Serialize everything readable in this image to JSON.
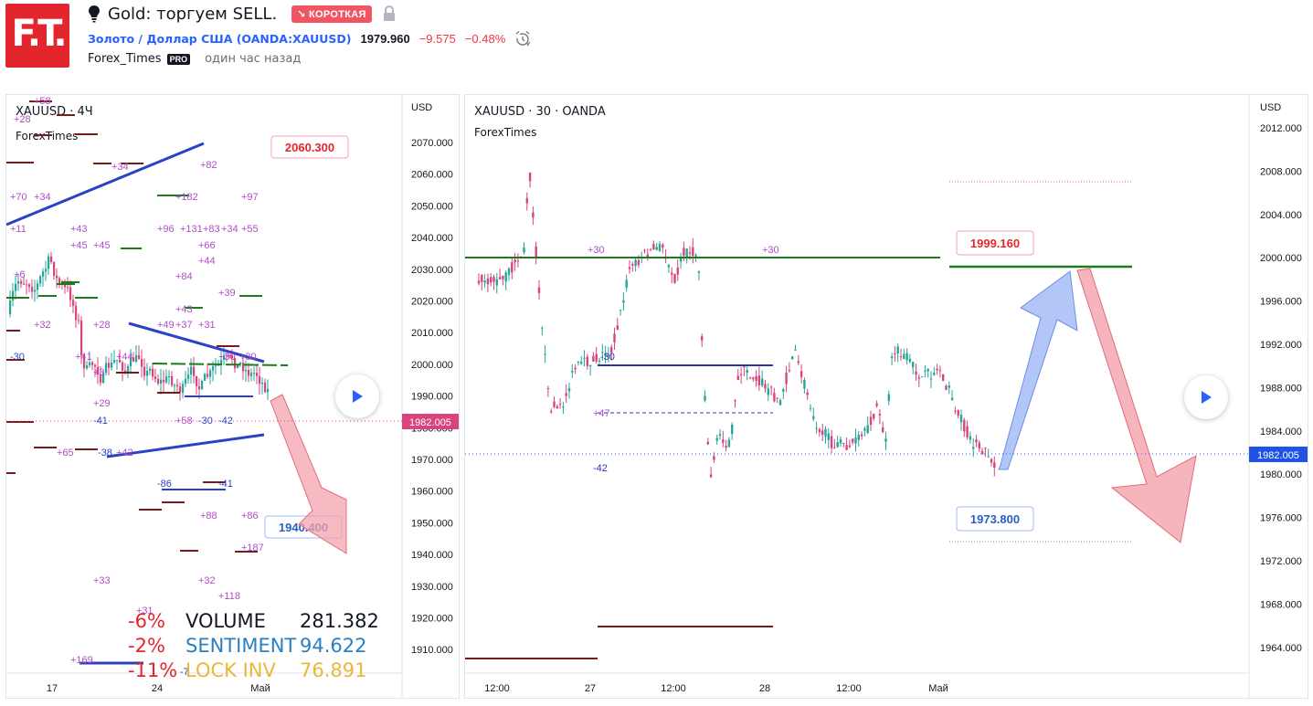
{
  "header": {
    "logo_text": "F.T.",
    "idea_title": "Gold: торгуем SELL.",
    "direction_badge": "↘ КОРОТКАЯ",
    "symbol_full": "Золото / Доллар США (OANDA:XAUUSD)",
    "price": "1979.960",
    "change": "−9.575",
    "change_pct": "−0.48%",
    "author": "Forex_Times",
    "author_badge": "PRO",
    "published": "один час назад",
    "icons": [
      "lightbulb-icon",
      "lock-icon",
      "alarm-clock-icon"
    ]
  },
  "left_chart": {
    "title": "XAUUSD · 4Ч",
    "watermark": "ForexTimes",
    "currency": "USD",
    "y_ticks": [
      "2070.000",
      "2060.000",
      "2050.000",
      "2040.000",
      "2030.000",
      "2020.000",
      "2010.000",
      "2000.000",
      "1990.000",
      "1980.000",
      "1970.000",
      "1960.000",
      "1950.000",
      "1940.000",
      "1930.000",
      "1920.000",
      "1910.000"
    ],
    "x_ticks": [
      "17",
      "24",
      "Май"
    ],
    "last_price": "1982.005",
    "target_high": "2060.300",
    "target_low": "1940.400",
    "volume_labels": [
      {
        "pct": "-6%",
        "name": "VOLUME",
        "value": "281.382",
        "color": "#131722"
      },
      {
        "pct": "-2%",
        "name": "SENTIMENT",
        "value": "94.622",
        "color": "#2a7fc1"
      },
      {
        "pct": "-11%",
        "name": "LOCK INV",
        "value": "76.891",
        "color": "#e8b83a"
      }
    ],
    "pct_color": "#e3262d",
    "annotations": [
      "+58",
      "+28",
      "+34",
      "+70",
      "+34",
      "+82",
      "+182",
      "+97",
      "+11",
      "+43",
      "+45",
      "+45",
      "+96",
      "+131",
      "+83",
      "+34",
      "+55",
      "+66",
      "+6",
      "+44",
      "+84",
      "+39",
      "+43",
      "+32",
      "+28",
      "+49",
      "+37",
      "+31",
      "-30",
      "+44",
      "+41",
      "+30",
      "+30",
      "+3",
      "+29",
      "-41",
      "+58",
      "-30",
      "-42",
      "+65",
      "-38",
      "+42",
      "-86",
      "-41",
      "+88",
      "+86",
      "+187",
      "+33",
      "+32",
      "+118",
      "+31",
      "+169",
      "-7"
    ]
  },
  "right_chart": {
    "title": "XAUUSD · 30 · OANDA",
    "watermark": "ForexTimes",
    "currency": "USD",
    "y_ticks": [
      "2012.000",
      "2008.000",
      "2004.000",
      "2000.000",
      "1996.000",
      "1992.000",
      "1988.000",
      "1984.000",
      "1980.000",
      "1976.000",
      "1972.000",
      "1968.000",
      "1964.000"
    ],
    "x_ticks": [
      "12:00",
      "27",
      "12:00",
      "28",
      "12:00",
      "Май"
    ],
    "last_price": "1982.005",
    "target_high": "1999.160",
    "target_low": "1973.800",
    "annotations": [
      "+30",
      "+30",
      "+47",
      "-42",
      "-30"
    ]
  },
  "colors": {
    "up": "#26a69a",
    "candle": "#d9437e",
    "down_arrow": "#f4a3ad",
    "up_arrow": "#9fb9f5",
    "trend_blue": "#2a42c9",
    "green_line": "#1e7a1e",
    "dark_red": "#7a1b1b"
  }
}
